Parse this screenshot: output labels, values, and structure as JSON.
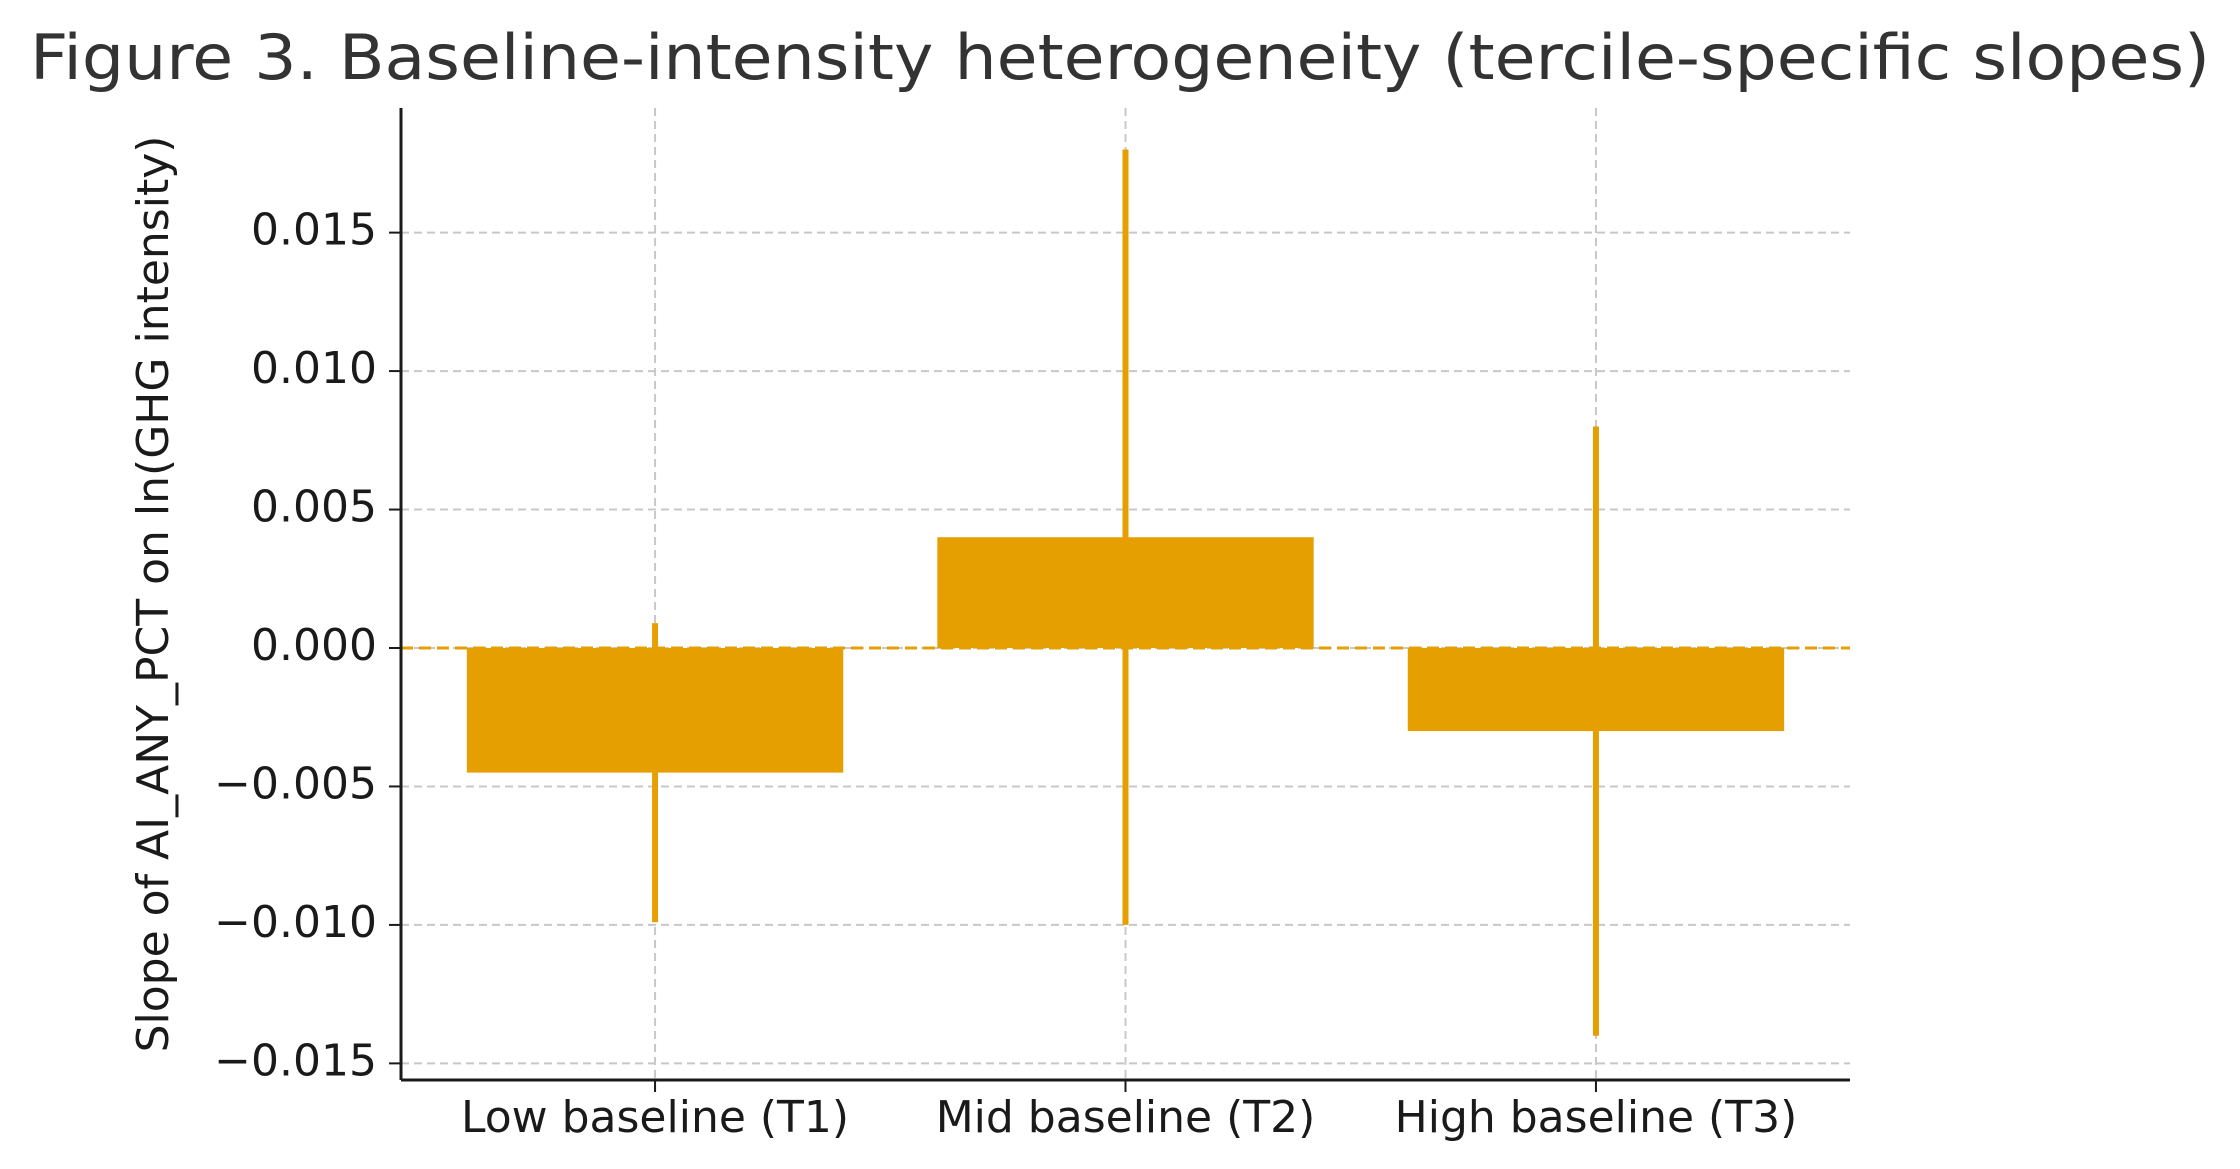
{
  "chart_data": {
    "type": "bar",
    "title": "Figure 3. Baseline-intensity heterogeneity (tercile-specific slopes)",
    "y_label": "Slope of AI_ANY_PCT on ln(GHG intensity)",
    "categories": [
      "Low baseline (T1)",
      "Mid baseline (T2)",
      "High baseline (T3)"
    ],
    "values": [
      -0.0045,
      0.004,
      -0.003
    ],
    "errors": [
      0.0054,
      0.014,
      0.011
    ],
    "color": "#E69F00",
    "hline": 0,
    "ylim": [
      -0.0156,
      0.0195
    ],
    "yticks": [
      {
        "value": -0.015,
        "label": "−0.015"
      },
      {
        "value": -0.01,
        "label": "−0.010"
      },
      {
        "value": -0.005,
        "label": "−0.005"
      },
      {
        "value": 0,
        "label": "0.000"
      },
      0.005,
      {
        "value": 0.01,
        "label": "0.010"
      },
      0.015
    ],
    "grid": true
  }
}
